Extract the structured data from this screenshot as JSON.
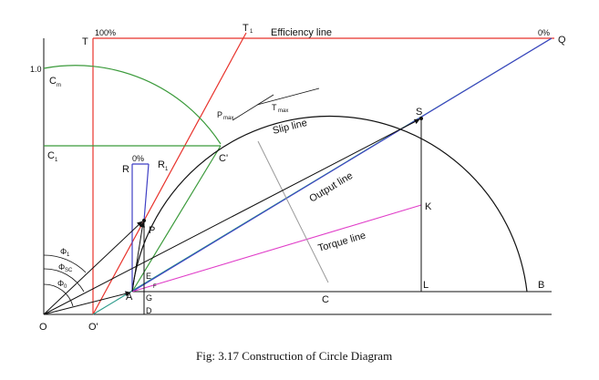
{
  "figure": {
    "caption": "Fig: 3.17 Construction of Circle Diagram"
  },
  "labels": {
    "T": "T",
    "hundred_pct": "100%",
    "T1": "T",
    "T1_sub": "1",
    "efficiency_line": "Efficiency line",
    "zero_pct_top": "0%",
    "Q": "Q",
    "one_point_zero": "1.0",
    "Cm": "C",
    "Cm_sub": "m",
    "Pmax": "P",
    "Pmax_sub": "max",
    "Tmax": "T",
    "Tmax_sub": "max",
    "slip_line": "Slip line",
    "S": "S",
    "C1": "C",
    "C1_sub": "1",
    "zero_pct_mid": "0%",
    "R": "R",
    "R1": "R",
    "R1_sub": "1",
    "C_prime": "C'",
    "output_line": "Output line",
    "K": "K",
    "P": "P",
    "torque_line": "Torque line",
    "phi1": "Φ",
    "phi1_sub": "1",
    "phiSC": "Φ",
    "phiSC_sub": "SC",
    "phi0": "Φ",
    "phi0_sub": "0",
    "E": "E",
    "F": "F",
    "A": "A",
    "G": "G",
    "C": "C",
    "L": "L",
    "B": "B",
    "D": "D",
    "O": "O",
    "O_prime": "O'"
  },
  "colors": {
    "efficiency_line": "#e8322b",
    "slip_line": "#3f3fc4",
    "output_line": "#2a9a8a",
    "torque_line": "#e03cc8",
    "cm_arc": "#3a9a3a",
    "circle": "#111111",
    "axis": "#111111",
    "perpendicular": "#9a9a9a"
  }
}
